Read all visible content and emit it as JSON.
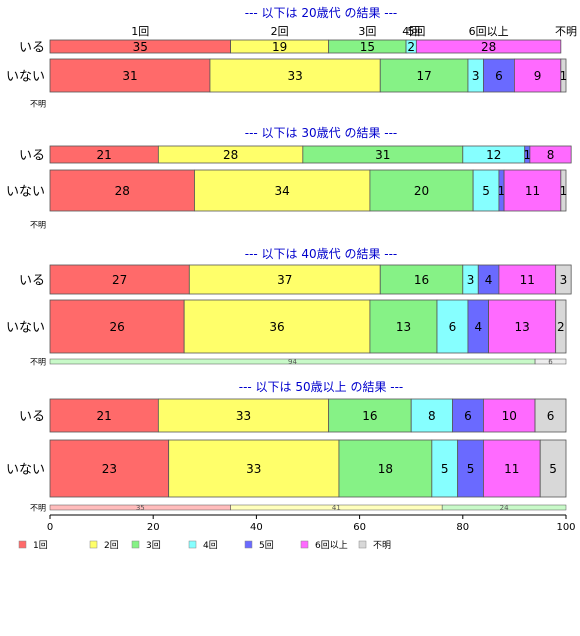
{
  "chart_data": {
    "type": "bar",
    "orientation": "horizontal",
    "stacked": true,
    "percent": true,
    "categories": [
      "1回",
      "2回",
      "3回",
      "4回",
      "5回",
      "6回以上",
      "不明"
    ],
    "colors": [
      "#ff6a6a",
      "#ffff6a",
      "#86f286",
      "#86ffff",
      "#6a6aff",
      "#ff6aff",
      "#d8d8d8"
    ],
    "xlim": [
      0,
      100
    ],
    "xticks": [
      "0",
      "20",
      "40",
      "60",
      "80",
      "100"
    ],
    "row_labels": [
      "いる",
      "いない",
      "不明"
    ],
    "top_category_labels": [
      "1回",
      "2回",
      "3回",
      "4回",
      "5回",
      "6回以上",
      "不明"
    ],
    "legend": {
      "placement": "bottom-left",
      "items": [
        "1回",
        "2回",
        "3回",
        "4回",
        "5回",
        "6回以上",
        "不明"
      ]
    },
    "panels": [
      {
        "title": "--- 以下は 20歳代 の結果 ---",
        "rows": [
          {
            "label": "いる",
            "values": [
              35,
              19,
              15,
              2,
              0,
              28,
              0
            ],
            "shown": [
              "35",
              "19",
              "15",
              "2",
              "",
              "28",
              ""
            ]
          },
          {
            "label": "いない",
            "values": [
              31,
              33,
              17,
              3,
              6,
              9,
              1
            ],
            "shown": [
              "31",
              "33",
              "17",
              "3",
              "6",
              "9",
              "1"
            ]
          },
          {
            "label": "不明",
            "values": [],
            "shown": []
          }
        ]
      },
      {
        "title": "--- 以下は 30歳代 の結果 ---",
        "rows": [
          {
            "label": "いる",
            "values": [
              21,
              28,
              31,
              12,
              1,
              8,
              0
            ],
            "shown": [
              "21",
              "28",
              "31",
              "12",
              "1",
              "8",
              ""
            ]
          },
          {
            "label": "いない",
            "values": [
              28,
              34,
              20,
              5,
              1,
              11,
              1
            ],
            "shown": [
              "28",
              "34",
              "20",
              "5",
              "1",
              "11",
              "1"
            ]
          },
          {
            "label": "不明",
            "values": [],
            "shown": []
          }
        ]
      },
      {
        "title": "--- 以下は 40歳代 の結果 ---",
        "rows": [
          {
            "label": "いる",
            "values": [
              27,
              37,
              16,
              3,
              4,
              11,
              3
            ],
            "shown": [
              "27",
              "37",
              "16",
              "3",
              "4",
              "11",
              "3"
            ]
          },
          {
            "label": "いない",
            "values": [
              26,
              36,
              13,
              6,
              4,
              13,
              2
            ],
            "shown": [
              "26",
              "36",
              "13",
              "6",
              "4",
              "13",
              "2"
            ]
          },
          {
            "label": "不明",
            "values": [
              0,
              0,
              94,
              0,
              0,
              0,
              6
            ],
            "shown": [
              "",
              "",
              "94",
              "",
              "",
              "",
              "6"
            ]
          }
        ]
      },
      {
        "title": "--- 以下は 50歳以上 の結果 ---",
        "rows": [
          {
            "label": "いる",
            "values": [
              21,
              33,
              16,
              8,
              6,
              10,
              6
            ],
            "shown": [
              "21",
              "33",
              "16",
              "8",
              "6",
              "10",
              "6"
            ]
          },
          {
            "label": "いない",
            "values": [
              23,
              33,
              18,
              5,
              5,
              11,
              5
            ],
            "shown": [
              "23",
              "33",
              "18",
              "5",
              "5",
              "11",
              "5"
            ]
          },
          {
            "label": "不明",
            "values": [
              35,
              41,
              24,
              0,
              0,
              0,
              0
            ],
            "shown": [
              "35",
              "41",
              "24",
              "",
              "",
              "",
              ""
            ]
          }
        ]
      }
    ]
  }
}
